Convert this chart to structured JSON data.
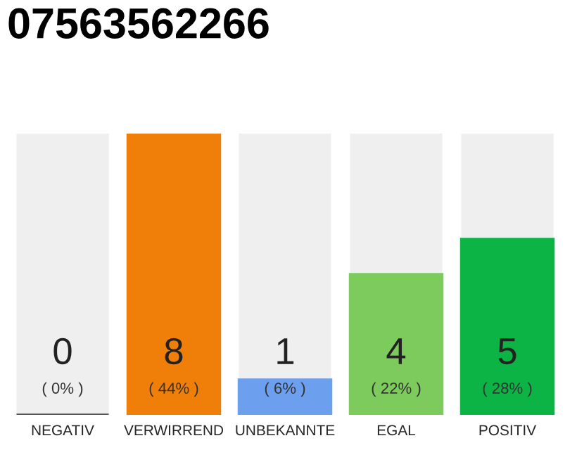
{
  "chart_data": {
    "type": "bar",
    "title": "07563562266",
    "categories": [
      "NEGATIV",
      "VERWIRREND",
      "UNBEKANNTE",
      "EGAL",
      "POSITIV"
    ],
    "values": [
      0,
      8,
      1,
      4,
      5
    ],
    "colors": [
      "#555555",
      "#f07f0a",
      "#6ca0ee",
      "#7dcb5c",
      "#0cb445"
    ],
    "value_labels": [
      "0",
      "8",
      "1",
      "4",
      "5"
    ],
    "annotations": [
      "( 0% )",
      "( 44% )",
      "( 6% )",
      "( 22% )",
      "( 28% )"
    ],
    "grid": false,
    "legend": false
  }
}
